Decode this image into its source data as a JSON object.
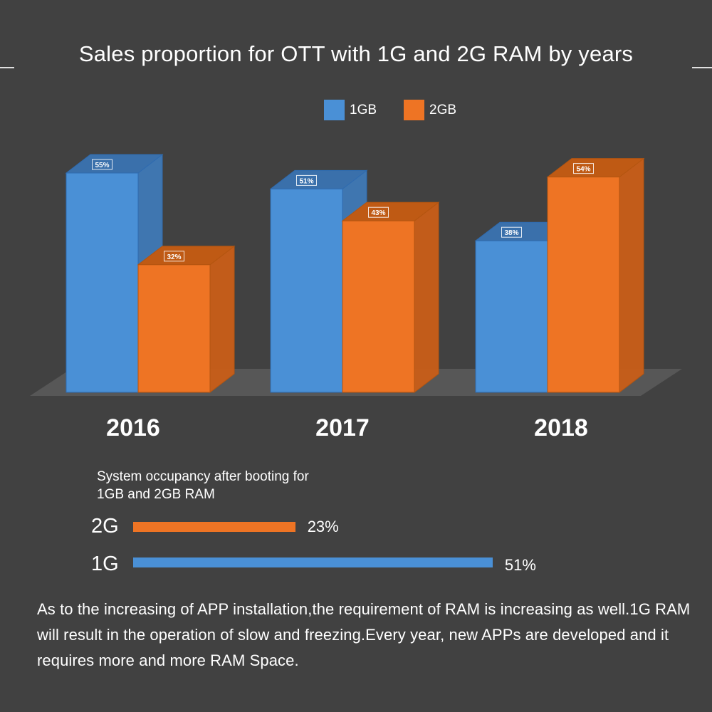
{
  "title": "Sales proportion for OTT with 1G and 2G RAM by years",
  "legend": [
    {
      "label": "1GB",
      "color": "#4a90d6"
    },
    {
      "label": "2GB",
      "color": "#ee7424"
    }
  ],
  "chart_data": [
    {
      "type": "bar",
      "title": "Sales proportion for OTT with 1G and 2G RAM by years",
      "categories": [
        "2016",
        "2017",
        "2018"
      ],
      "series": [
        {
          "name": "1GB",
          "values": [
            55,
            51,
            38
          ],
          "labels": [
            "55%",
            "51%",
            "38%"
          ],
          "color": "#4a90d6"
        },
        {
          "name": "2GB",
          "values": [
            32,
            43,
            54
          ],
          "labels": [
            "32%",
            "43%",
            "54%"
          ],
          "color": "#ee7424"
        }
      ],
      "unit": "%",
      "ylim": [
        0,
        60
      ],
      "grid": false,
      "legend_position": "top-center",
      "style": "3d"
    },
    {
      "type": "bar",
      "orientation": "horizontal",
      "title": "System occupancy after booting for 1GB and 2GB RAM",
      "categories": [
        "2G",
        "1G"
      ],
      "values": [
        23,
        51
      ],
      "labels": [
        "23%",
        "51%"
      ],
      "colors": [
        "#ee7424",
        "#4a90d6"
      ]
    }
  ],
  "note": "As to the increasing of APP installation,the requirement of RAM is increasing as well.1G RAM will result in the operation of slow and freezing.Every year, new APPs are developed and it requires more and more RAM Space."
}
